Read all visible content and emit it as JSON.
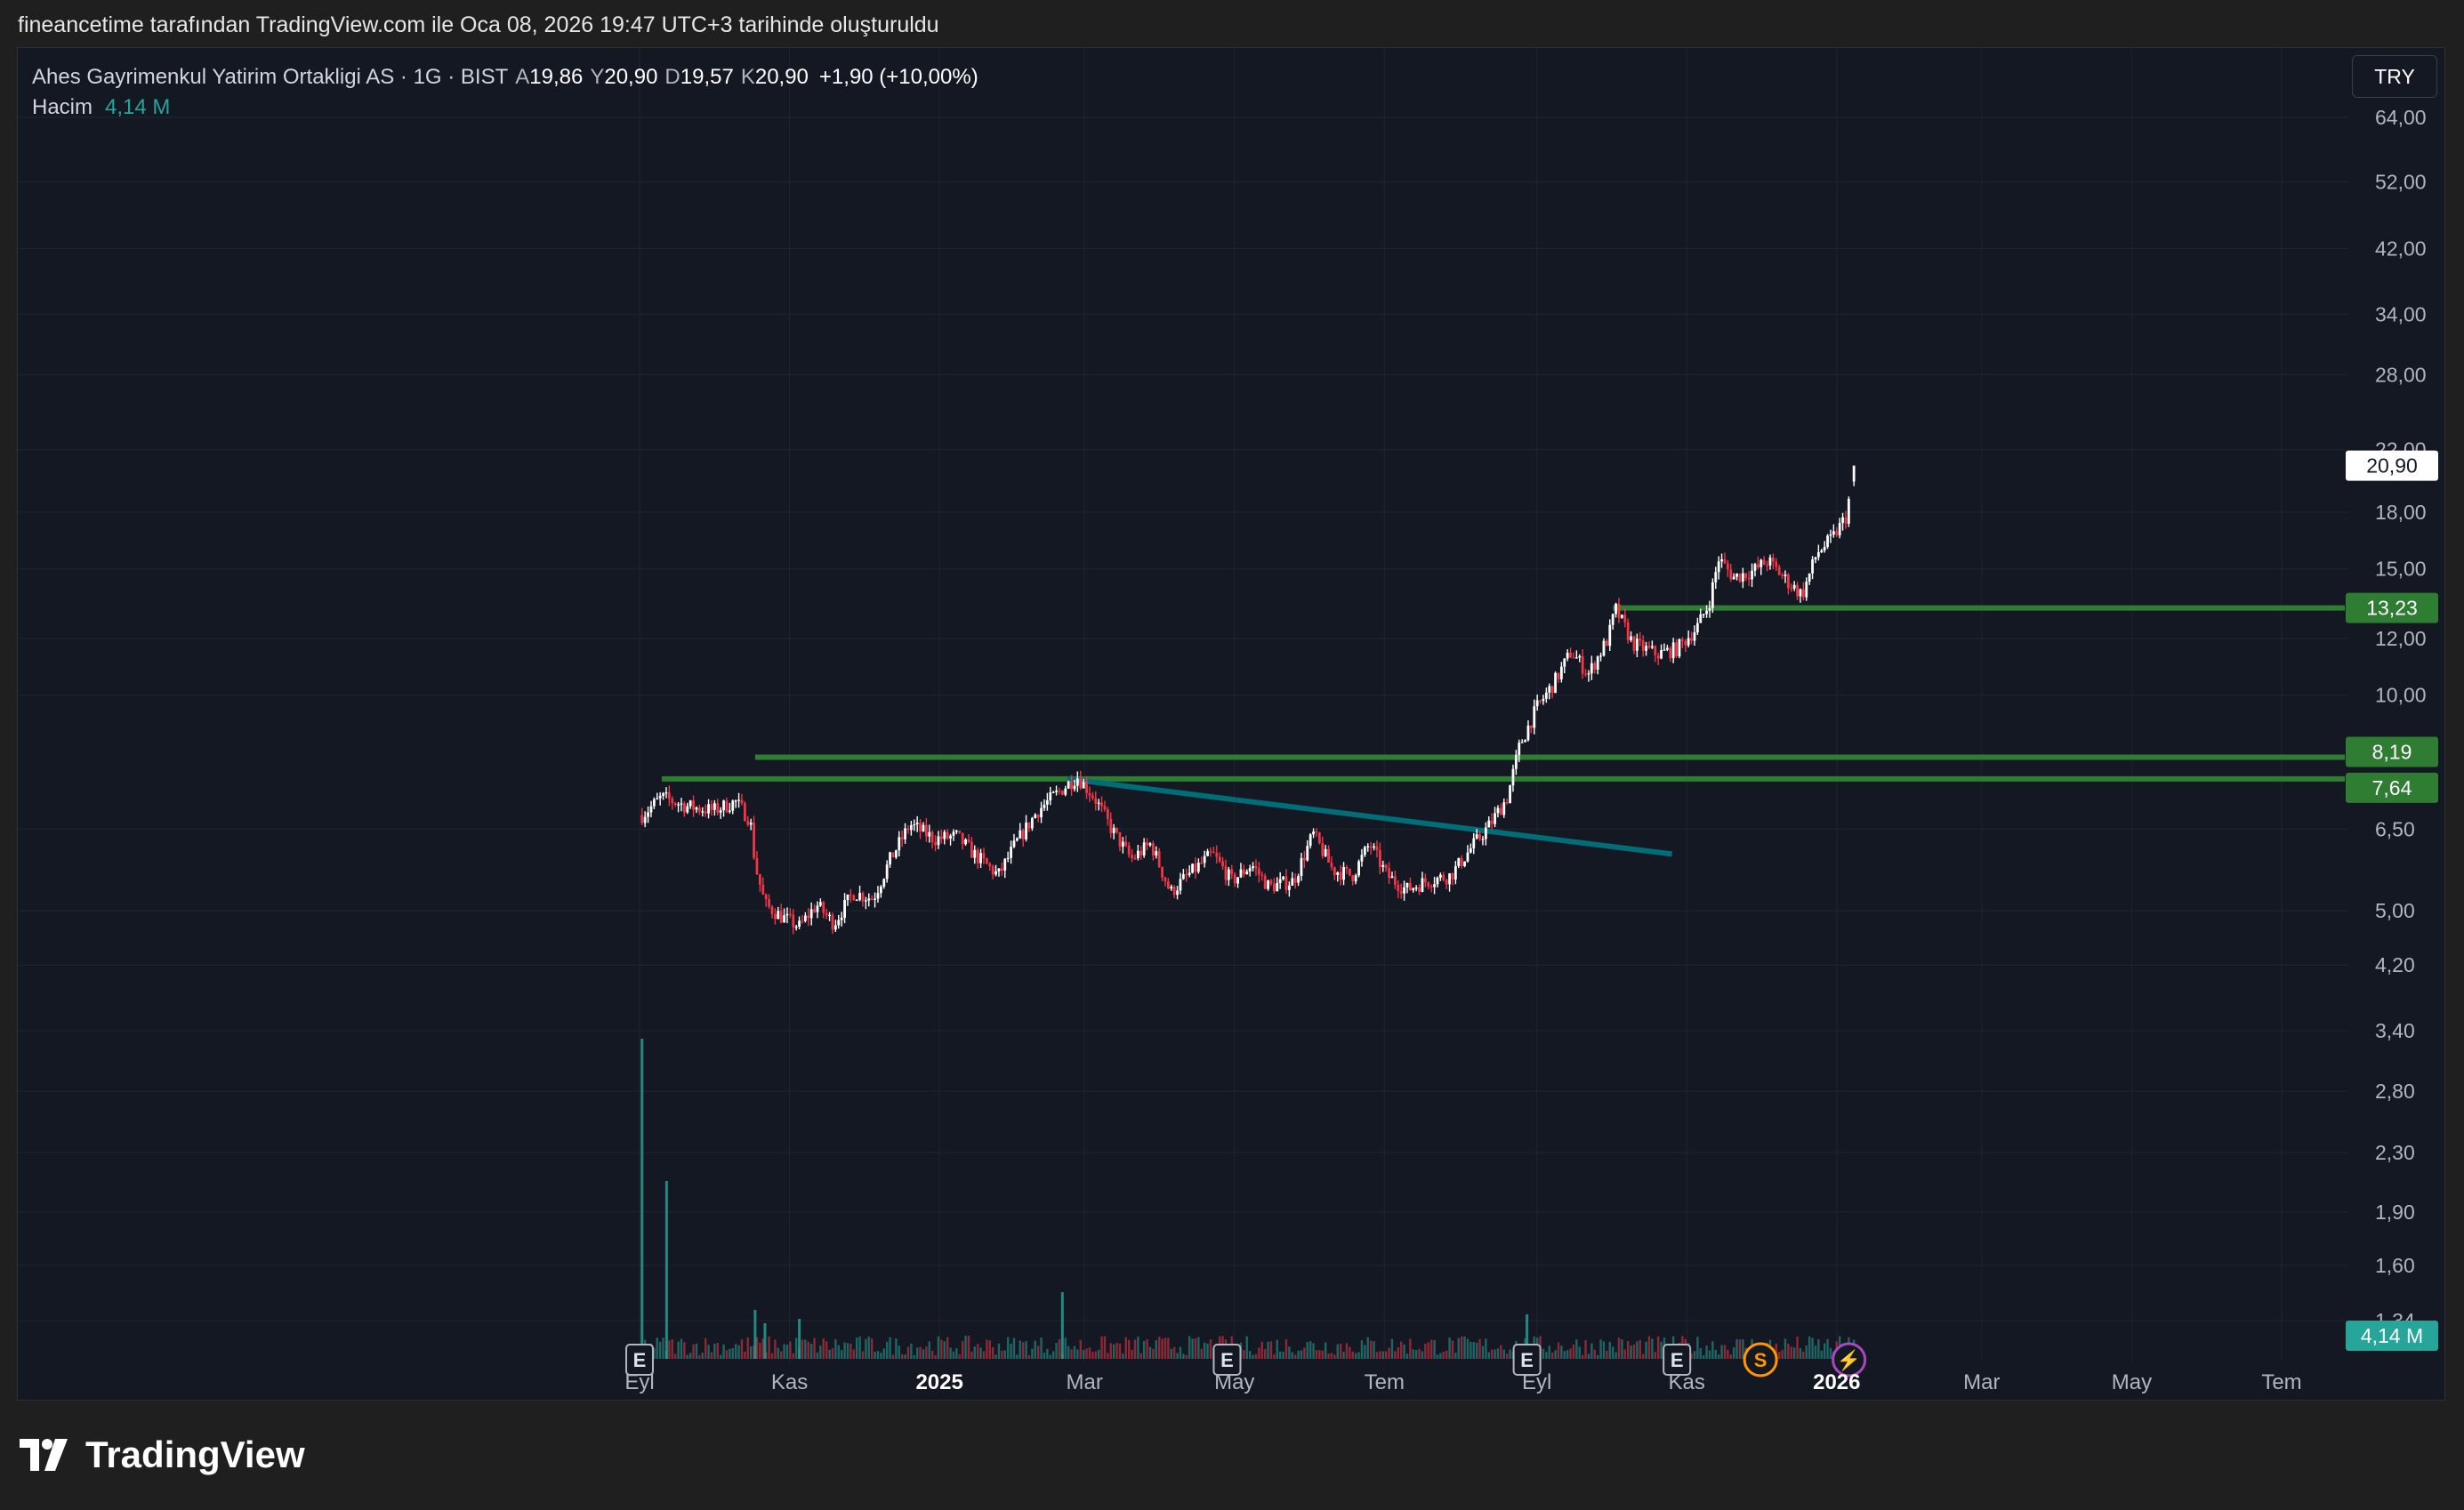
{
  "header": {
    "caption": "fineancetime tarafından TradingView.com ile Oca 08, 2026 19:47 UTC+3 tarihinde oluşturuldu"
  },
  "legend": {
    "symbol_line": "Ahes Gayrimenkul Yatirim Ortakligi AS · 1G · BIST",
    "open_label": "A",
    "open_value": "19,86",
    "high_label": "Y",
    "high_value": "20,90",
    "low_label": "D",
    "low_value": "19,57",
    "close_label": "K",
    "close_value": "20,90",
    "change": "+1,90 (+10,00%)",
    "volume_label": "Hacim",
    "volume_value": "4,14 M"
  },
  "currency": "TRY",
  "brand": {
    "name": "TradingView",
    "icon": "tradingview-logo-icon"
  },
  "colors": {
    "background": "#141823",
    "up": "#ffffff",
    "down": "#f23645",
    "volume_up": "#26a69a",
    "volume_down": "#f23645",
    "hline": "#2e7d32",
    "trendline": "#006d77",
    "label_green": "#2e7d32",
    "volume_badge": "#26a69a",
    "earnings_marker": "#b2b5be",
    "dividend_marker": "#ff9800",
    "event_marker": "#ab47bc"
  },
  "chart_data": {
    "type": "candlestick",
    "scale": "log",
    "grid": true,
    "y_axis_ticks": [
      "64,00",
      "52,00",
      "42,00",
      "34,00",
      "28,00",
      "22,00",
      "18,00",
      "15,00",
      "12,00",
      "10,00",
      "6,50",
      "5,00",
      "4,20",
      "3,40",
      "2,80",
      "2,30",
      "1,90",
      "1,60",
      "1,34"
    ],
    "y_axis_tick_values": [
      64,
      52,
      42,
      34,
      28,
      22,
      18,
      15,
      12,
      10,
      6.5,
      5,
      4.2,
      3.4,
      2.8,
      2.3,
      1.9,
      1.6,
      1.34
    ],
    "x_axis_ticks": [
      "Eyl",
      "Kas",
      "2025",
      "Mar",
      "May",
      "Tem",
      "Eyl",
      "Kas",
      "2026",
      "Mar",
      "May",
      "Tem"
    ],
    "x_axis_tick_dates": [
      "2024-09-01",
      "2024-11-01",
      "2025-01-01",
      "2025-03-01",
      "2025-05-01",
      "2025-07-01",
      "2025-09-01",
      "2025-11-01",
      "2026-01-01",
      "2026-03-01",
      "2026-05-01",
      "2026-07-01"
    ],
    "x_axis_bold": [
      "2025",
      "2026"
    ],
    "price_path": [
      [
        "2024-09-02",
        6.8
      ],
      [
        "2024-09-10",
        7.2
      ],
      [
        "2024-09-20",
        7.0
      ],
      [
        "2024-10-01",
        6.9
      ],
      [
        "2024-10-10",
        7.1
      ],
      [
        "2024-10-16",
        6.7
      ],
      [
        "2024-10-18",
        5.8
      ],
      [
        "2024-10-22",
        5.1
      ],
      [
        "2024-10-29",
        4.9
      ],
      [
        "2024-11-05",
        4.75
      ],
      [
        "2024-11-12",
        5.1
      ],
      [
        "2024-11-19",
        4.8
      ],
      [
        "2024-11-27",
        5.3
      ],
      [
        "2024-12-05",
        5.2
      ],
      [
        "2024-12-12",
        5.9
      ],
      [
        "2024-12-20",
        6.6
      ],
      [
        "2024-12-30",
        6.3
      ],
      [
        "2025-01-08",
        6.35
      ],
      [
        "2025-01-15",
        6.0
      ],
      [
        "2025-01-25",
        5.6
      ],
      [
        "2025-02-01",
        6.2
      ],
      [
        "2025-02-10",
        6.9
      ],
      [
        "2025-02-20",
        7.4
      ],
      [
        "2025-02-26",
        7.7
      ],
      [
        "2025-03-05",
        7.2
      ],
      [
        "2025-03-12",
        6.5
      ],
      [
        "2025-03-20",
        5.9
      ],
      [
        "2025-03-28",
        6.2
      ],
      [
        "2025-04-05",
        5.3
      ],
      [
        "2025-04-12",
        5.6
      ],
      [
        "2025-04-22",
        6.0
      ],
      [
        "2025-04-30",
        5.5
      ],
      [
        "2025-05-08",
        5.8
      ],
      [
        "2025-05-15",
        5.4
      ],
      [
        "2025-05-25",
        5.5
      ],
      [
        "2025-06-02",
        6.4
      ],
      [
        "2025-06-10",
        5.7
      ],
      [
        "2025-06-18",
        5.6
      ],
      [
        "2025-06-25",
        6.2
      ],
      [
        "2025-07-02",
        5.6
      ],
      [
        "2025-07-10",
        5.35
      ],
      [
        "2025-07-18",
        5.5
      ],
      [
        "2025-07-28",
        5.6
      ],
      [
        "2025-08-05",
        6.1
      ],
      [
        "2025-08-13",
        6.6
      ],
      [
        "2025-08-20",
        7.2
      ],
      [
        "2025-08-25",
        8.5
      ],
      [
        "2025-09-01",
        9.6
      ],
      [
        "2025-09-08",
        10.4
      ],
      [
        "2025-09-15",
        11.5
      ],
      [
        "2025-09-22",
        10.7
      ],
      [
        "2025-09-30",
        12.0
      ],
      [
        "2025-10-03",
        13.2
      ],
      [
        "2025-10-10",
        11.8
      ],
      [
        "2025-10-20",
        11.4
      ],
      [
        "2025-10-28",
        11.6
      ],
      [
        "2025-11-05",
        12.4
      ],
      [
        "2025-11-10",
        13.4
      ],
      [
        "2025-11-14",
        15.5
      ],
      [
        "2025-11-20",
        14.6
      ],
      [
        "2025-11-28",
        14.9
      ],
      [
        "2025-12-04",
        15.4
      ],
      [
        "2025-12-12",
        14.4
      ],
      [
        "2025-12-18",
        13.8
      ],
      [
        "2025-12-24",
        15.8
      ],
      [
        "2025-12-30",
        16.5
      ],
      [
        "2026-01-05",
        17.8
      ],
      [
        "2026-01-08",
        20.9
      ]
    ],
    "trendline": {
      "from": [
        "2025-02-22",
        7.64
      ],
      "to": [
        "2025-10-26",
        6.0
      ]
    },
    "horizontal_levels": [
      {
        "value": 13.23,
        "label": "13,23",
        "start": "2025-10-02"
      },
      {
        "value": 8.19,
        "label": "8,19",
        "start": "2024-10-18"
      },
      {
        "value": 7.64,
        "label": "7,64",
        "start": "2024-09-10"
      }
    ],
    "last_price": {
      "value": 20.9,
      "label": "20,90"
    },
    "volume_last": "4,14 M",
    "volume_spikes": [
      [
        "2024-09-02",
        3.6
      ],
      [
        "2024-09-12",
        2.0
      ],
      [
        "2024-10-18",
        0.55
      ],
      [
        "2024-10-22",
        0.4
      ],
      [
        "2024-11-05",
        0.45
      ],
      [
        "2025-02-20",
        0.75
      ],
      [
        "2025-08-28",
        0.5
      ]
    ],
    "event_markers": [
      {
        "date": "2024-09-01",
        "label": "E",
        "kind": "earnings"
      },
      {
        "date": "2025-04-28",
        "label": "E",
        "kind": "earnings"
      },
      {
        "date": "2025-08-28",
        "label": "E",
        "kind": "earnings"
      },
      {
        "date": "2025-10-28",
        "label": "E",
        "kind": "earnings"
      },
      {
        "date": "2025-12-01",
        "label": "S",
        "kind": "dividend"
      },
      {
        "date": "2026-01-06",
        "label": "⚡",
        "kind": "event"
      }
    ]
  }
}
